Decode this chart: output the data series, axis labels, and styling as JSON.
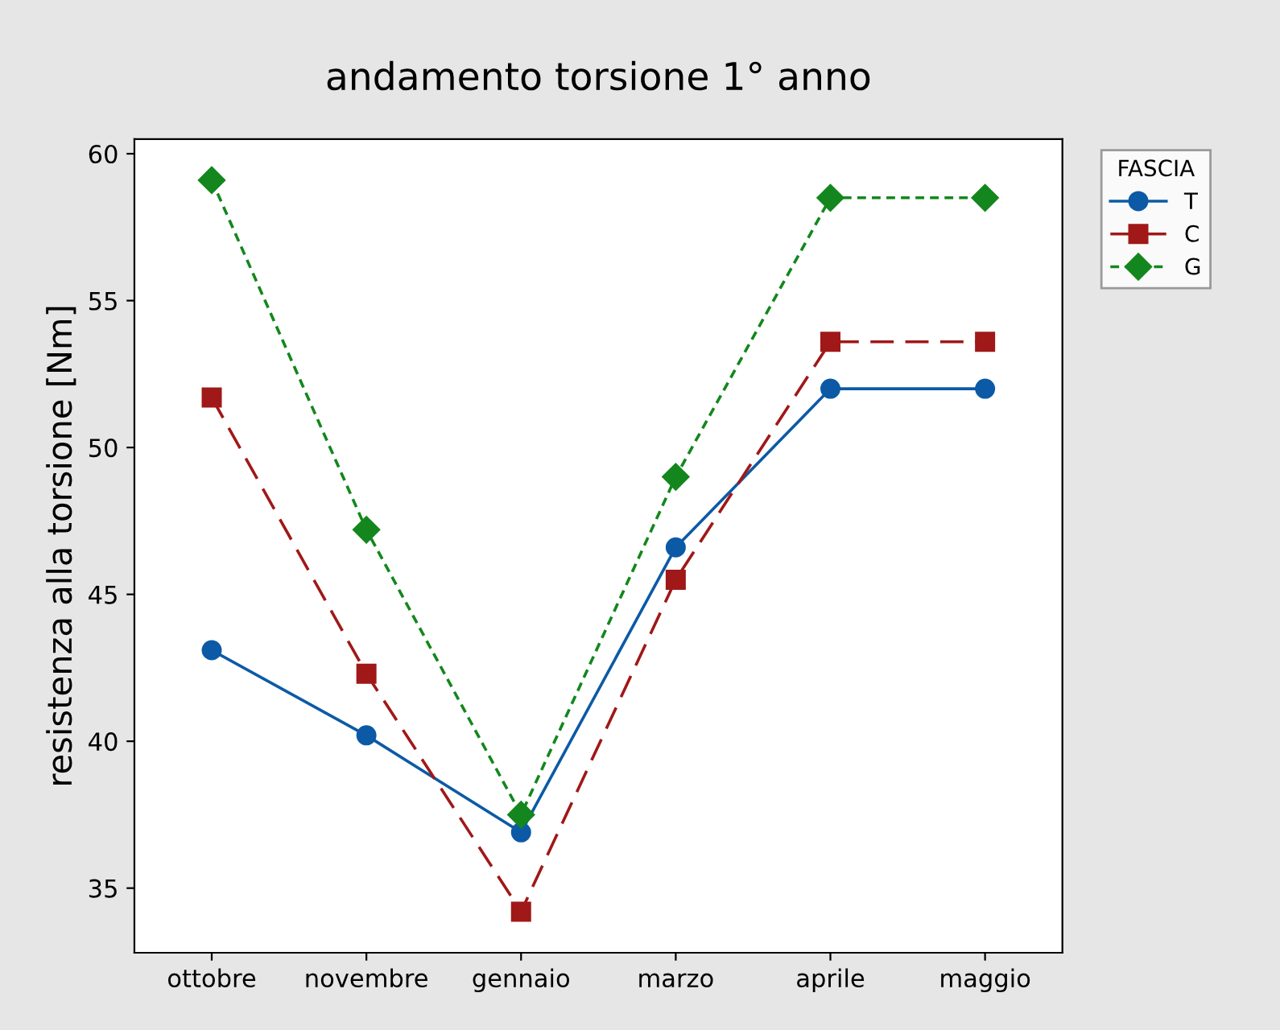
{
  "chart_data": {
    "type": "line",
    "title": "andamento torsione 1° anno",
    "ylabel": "resistenza alla torsione [Nm]",
    "legend_title": "FASCIA",
    "legend": "top right",
    "categories": [
      "ottobre",
      "novembre",
      "gennaio",
      "marzo",
      "aprile",
      "maggio"
    ],
    "ylim": [
      32.8,
      60.5
    ],
    "yticks": [
      35,
      40,
      45,
      50,
      55,
      60
    ],
    "grid": false,
    "series": [
      {
        "name": "T",
        "color": "#0c5aa6",
        "marker": "circle",
        "line_style": "solid",
        "values": [
          43.1,
          40.2,
          36.9,
          46.6,
          52.0,
          52.0
        ]
      },
      {
        "name": "C",
        "color": "#a01818",
        "marker": "square",
        "line_style": "dashed",
        "values": [
          51.7,
          42.3,
          34.2,
          45.5,
          53.6,
          53.6
        ]
      },
      {
        "name": "G",
        "color": "#13871d",
        "marker": "diamond",
        "line_style": "dotted",
        "values": [
          59.1,
          47.2,
          37.5,
          49.0,
          58.5,
          58.5
        ]
      }
    ]
  }
}
